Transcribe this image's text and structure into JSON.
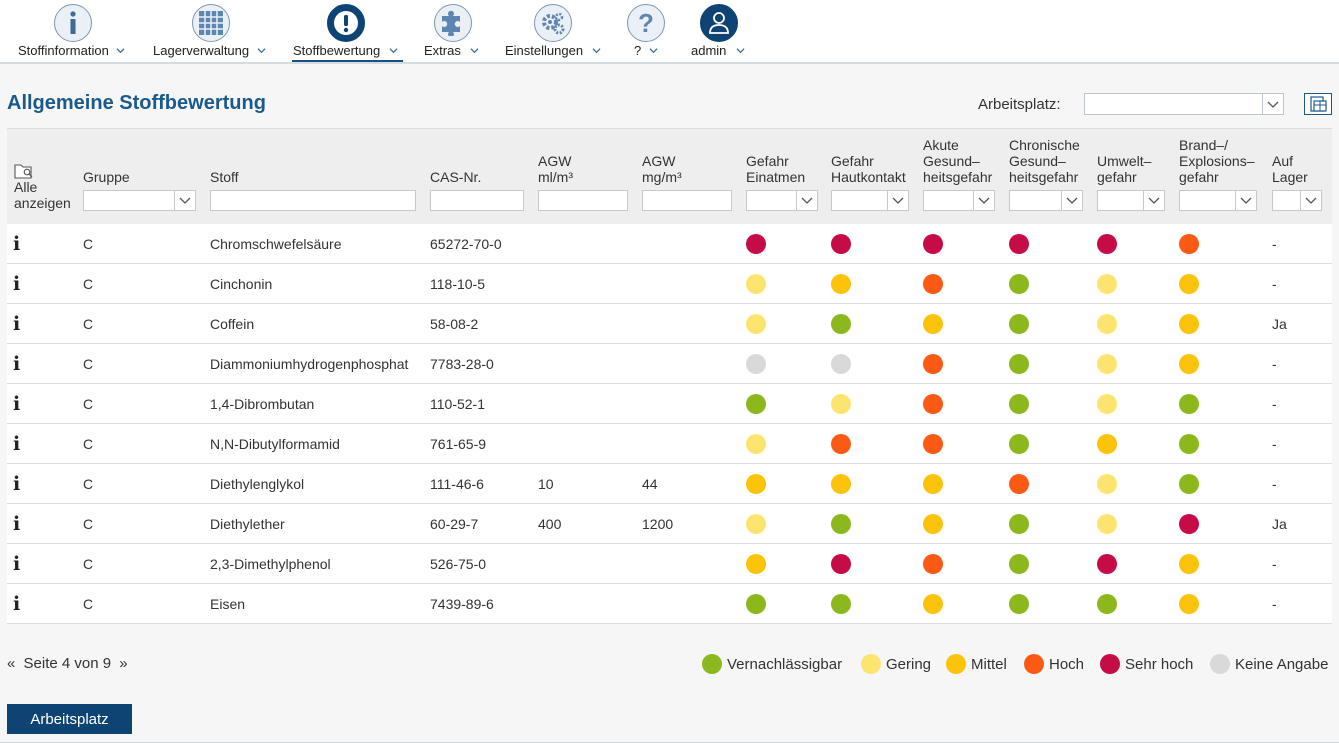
{
  "nav": {
    "items": [
      {
        "label": "Stoffinformation",
        "icon": "info-icon"
      },
      {
        "label": "Lagerverwaltung",
        "icon": "grid-icon"
      },
      {
        "label": "Stoffbewertung",
        "icon": "exclamation-icon",
        "active": true
      },
      {
        "label": "Extras",
        "icon": "puzzle-icon"
      },
      {
        "label": "Einstellungen",
        "icon": "gears-icon"
      },
      {
        "label": "?",
        "icon": "help-icon"
      },
      {
        "label": "admin",
        "icon": "user-icon"
      }
    ]
  },
  "page": {
    "title": "Allgemeine Stoffbewertung",
    "arbeitsplatz_label": "Arbeitsplatz:",
    "arbeitsplatz_value": ""
  },
  "table": {
    "show_all_line1": "Alle",
    "show_all_line2": "anzeigen",
    "headers": {
      "gruppe": "Gruppe",
      "stoff": "Stoff",
      "cas": "CAS-Nr.",
      "agw_ml_1": "AGW",
      "agw_ml_2": "ml/m³",
      "agw_mg_1": "AGW",
      "agw_mg_2": "mg/m³",
      "einatmen_1": "Gefahr",
      "einatmen_2": "Einatmen",
      "haut_1": "Gefahr",
      "haut_2": "Hautkontakt",
      "akut_1": "Akute",
      "akut_2": "Gesund–",
      "akut_3": "heitsgefahr",
      "chron_1": "Chronische",
      "chron_2": "Gesund–",
      "chron_3": "heitsgefahr",
      "umwelt_1": "Umwelt–",
      "umwelt_2": "gefahr",
      "brand_1": "Brand–/",
      "brand_2": "Explosions–",
      "brand_3": "gefahr",
      "lager_1": "Auf",
      "lager_2": "Lager"
    },
    "rows": [
      {
        "gruppe": "C",
        "stoff": "Chromschwefelsäure",
        "cas": "65272-70-0",
        "agw_ml": "",
        "agw_mg": "",
        "ratings": [
          "sehr_hoch",
          "sehr_hoch",
          "sehr_hoch",
          "sehr_hoch",
          "sehr_hoch",
          "hoch"
        ],
        "lager": "-"
      },
      {
        "gruppe": "C",
        "stoff": "Cinchonin",
        "cas": "118-10-5",
        "agw_ml": "",
        "agw_mg": "",
        "ratings": [
          "gering",
          "mittel",
          "hoch",
          "vernachlaessigbar",
          "gering",
          "mittel"
        ],
        "lager": "-"
      },
      {
        "gruppe": "C",
        "stoff": "Coffein",
        "cas": "58-08-2",
        "agw_ml": "",
        "agw_mg": "",
        "ratings": [
          "gering",
          "vernachlaessigbar",
          "mittel",
          "vernachlaessigbar",
          "gering",
          "mittel"
        ],
        "lager": "Ja"
      },
      {
        "gruppe": "C",
        "stoff": "Diammoniumhydrogenphosphat",
        "cas": "7783-28-0",
        "agw_ml": "",
        "agw_mg": "",
        "ratings": [
          "keine",
          "keine",
          "hoch",
          "vernachlaessigbar",
          "gering",
          "mittel"
        ],
        "lager": "-"
      },
      {
        "gruppe": "C",
        "stoff": "1,4-Dibrombutan",
        "cas": "110-52-1",
        "agw_ml": "",
        "agw_mg": "",
        "ratings": [
          "vernachlaessigbar",
          "gering",
          "hoch",
          "vernachlaessigbar",
          "gering",
          "vernachlaessigbar"
        ],
        "lager": "-"
      },
      {
        "gruppe": "C",
        "stoff": "N,N-Dibutylformamid",
        "cas": "761-65-9",
        "agw_ml": "",
        "agw_mg": "",
        "ratings": [
          "gering",
          "hoch",
          "hoch",
          "vernachlaessigbar",
          "mittel",
          "vernachlaessigbar"
        ],
        "lager": "-"
      },
      {
        "gruppe": "C",
        "stoff": "Diethylenglykol",
        "cas": "111-46-6",
        "agw_ml": "10",
        "agw_mg": "44",
        "ratings": [
          "mittel",
          "mittel",
          "mittel",
          "hoch",
          "gering",
          "vernachlaessigbar"
        ],
        "lager": "-"
      },
      {
        "gruppe": "C",
        "stoff": "Diethylether",
        "cas": "60-29-7",
        "agw_ml": "400",
        "agw_mg": "1200",
        "ratings": [
          "gering",
          "vernachlaessigbar",
          "mittel",
          "vernachlaessigbar",
          "gering",
          "sehr_hoch"
        ],
        "lager": "Ja"
      },
      {
        "gruppe": "C",
        "stoff": "2,3-Dimethylphenol",
        "cas": "526-75-0",
        "agw_ml": "",
        "agw_mg": "",
        "ratings": [
          "mittel",
          "sehr_hoch",
          "hoch",
          "vernachlaessigbar",
          "sehr_hoch",
          "mittel"
        ],
        "lager": "-"
      },
      {
        "gruppe": "C",
        "stoff": "Eisen",
        "cas": "7439-89-6",
        "agw_ml": "",
        "agw_mg": "",
        "ratings": [
          "vernachlaessigbar",
          "vernachlaessigbar",
          "mittel",
          "vernachlaessigbar",
          "vernachlaessigbar",
          "mittel"
        ],
        "lager": "-"
      }
    ]
  },
  "pager": {
    "text": "Seite 4 von 9"
  },
  "legend": [
    {
      "key": "vernachlaessigbar",
      "label": "Vernachlässigbar"
    },
    {
      "key": "gering",
      "label": "Gering"
    },
    {
      "key": "mittel",
      "label": "Mittel"
    },
    {
      "key": "hoch",
      "label": "Hoch"
    },
    {
      "key": "sehr_hoch",
      "label": "Sehr hoch"
    },
    {
      "key": "keine",
      "label": "Keine Angabe"
    }
  ],
  "colors": {
    "vernachlaessigbar": "#8cb81e",
    "gering": "#fbe570",
    "mittel": "#fbc40a",
    "hoch": "#fa5a14",
    "sehr_hoch": "#c60c47",
    "keine": "#d9d9d9",
    "brand": "#0e4474"
  },
  "footer": {
    "arbeitsplatz_button": "Arbeitsplatz"
  }
}
